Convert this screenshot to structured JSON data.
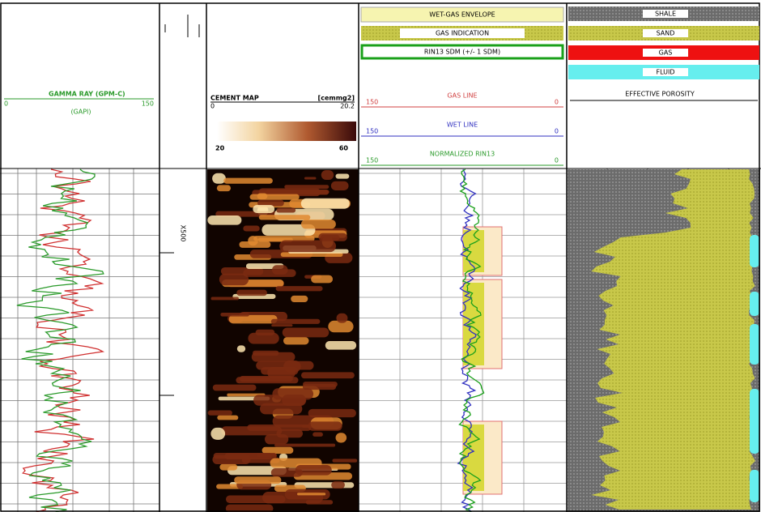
{
  "gamma_track": {
    "title": "GAMMA RAY (GPM-C)",
    "scale_left": "0",
    "scale_right": "150",
    "unit": "(GAPI)"
  },
  "depth_track": {
    "label": "X500"
  },
  "cement_track": {
    "title": "CEMENT MAP",
    "unit": "[cemmg2]",
    "scale_left": "0",
    "scale_right": "20.2",
    "bar_min": "20",
    "bar_max": "60"
  },
  "gas_track": {
    "legend": [
      "WET-GAS ENVELOPE",
      "GAS INDICATION",
      "RIN13 SDM (+/- 1 SDM)"
    ],
    "lines": [
      {
        "name": "GAS LINE",
        "left": "150",
        "right": "0"
      },
      {
        "name": "WET LINE",
        "left": "150",
        "right": "0"
      },
      {
        "name": "NORMALIZED RIN13",
        "left": "150",
        "right": "0"
      }
    ]
  },
  "lithology_track": {
    "legend": [
      "SHALE",
      "SAND",
      "GAS",
      "FLUID"
    ],
    "title": "EFFECTIVE POROSITY"
  }
}
